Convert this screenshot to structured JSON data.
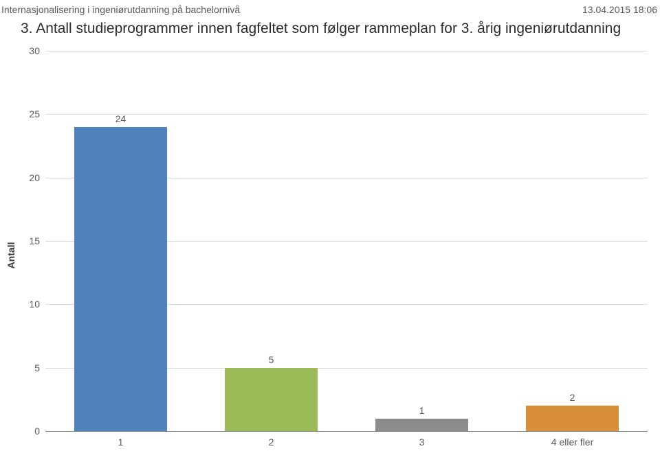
{
  "header": {
    "left": "Internasjonalisering i ingeniørutdanning på bachelornivå",
    "right": "13.04.2015 18:06"
  },
  "title": "3. Antall studieprogrammer innen fagfeltet som følger rammeplan for 3. årig ingeniørutdanning",
  "chart": {
    "type": "bar",
    "yaxis_label": "Antall",
    "ylim": [
      0,
      30
    ],
    "ytick_step": 5,
    "label_fontsize": 14,
    "title_fontsize": 21,
    "background_color": "#ffffff",
    "grid_color": "#d9d9d9",
    "baseline_color": "#808080",
    "text_color": "#595959",
    "bar_width": 0.62,
    "categories": [
      "1",
      "2",
      "3",
      "4 eller fler"
    ],
    "values": [
      24,
      5,
      1,
      2
    ],
    "bar_colors": [
      "#4f81bd",
      "#9bbb59",
      "#8c8c8c",
      "#d98e3a"
    ]
  }
}
